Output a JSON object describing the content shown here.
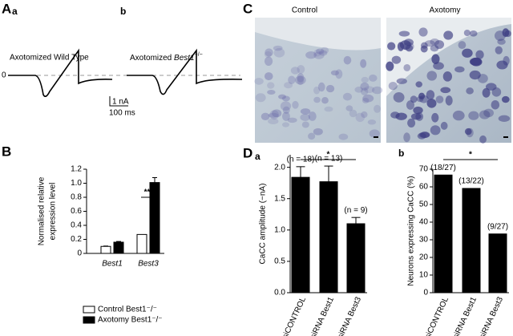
{
  "panel_labels": {
    "A": "A",
    "Aa": "a",
    "Ab": "b",
    "B": "B",
    "C": "C",
    "D": "D",
    "Da": "a",
    "Db": "b"
  },
  "traces": {
    "a_title": "Axotomized Wild Type",
    "b_title_prefix": "Axotomized ",
    "b_title_gene": "Best1",
    "b_title_sup": "−/−",
    "zero_label": "0",
    "scale_current": "1 nA",
    "scale_time": "100 ms"
  },
  "micrographs": {
    "left_title": "Control",
    "right_title": "Axotomy"
  },
  "chart_data": [
    {
      "type": "bar",
      "ylabel_lines": [
        "Normalised relative",
        "expression level"
      ],
      "categories": [
        "Best1",
        "Best3"
      ],
      "series": [
        {
          "name": "Control Best1⁻/⁻",
          "color": "#ffffff",
          "values": [
            0.1,
            0.27
          ],
          "errors": [
            0.005,
            0.0
          ]
        },
        {
          "name": "Axotomy Best1⁻/⁻",
          "color": "#000000",
          "values": [
            0.16,
            1.01
          ],
          "errors": [
            0.01,
            0.07
          ]
        }
      ],
      "ylim": [
        0,
        1.2
      ],
      "yticks": [
        0,
        {
          "value": 0.2,
          "label": "0.2"
        },
        {
          "value": 0.4,
          "label": "0.4"
        },
        {
          "value": 0.6,
          "label": "0.6"
        },
        {
          "value": 0.8,
          "label": "0.8"
        },
        {
          "value": 1.0,
          "label": "1.0"
        },
        {
          "value": 1.2,
          "label": "1.2"
        }
      ],
      "significance": "***",
      "legend": "bottom"
    },
    {
      "type": "bar",
      "ylabel": "CaCC amplitude (−nA)",
      "categories": [
        "siCONTROL",
        "siRNA Best1",
        "siRNA Best3"
      ],
      "values": [
        1.84,
        1.77,
        1.1
      ],
      "errors": [
        0.17,
        0.25,
        0.1
      ],
      "color": "#000000",
      "annotations": [
        "(n = 18)",
        "(n = 13)",
        "(n = 9)"
      ],
      "ylim": [
        0,
        2.2
      ],
      "yticks": [
        {
          "value": 0.0,
          "label": "0.0"
        },
        {
          "value": 0.5,
          "label": "0.5"
        },
        {
          "value": 1.0,
          "label": "1.0"
        },
        {
          "value": 1.5,
          "label": "1.5"
        },
        {
          "value": 2.0,
          "label": "2.0"
        }
      ],
      "significance": "*"
    },
    {
      "type": "bar",
      "ylabel": "Neurons expressing CaCC (%)",
      "categories": [
        "siCONTROL",
        "siRNA Best1",
        "siRNA Best3"
      ],
      "values": [
        66.7,
        59.1,
        33.3
      ],
      "color": "#000000",
      "annotations": [
        "(18/27)",
        "(13/22)",
        "(9/27)"
      ],
      "ylim": [
        0,
        70
      ],
      "yticks": [
        0,
        10,
        20,
        30,
        40,
        50,
        60,
        70
      ],
      "significance": "*"
    }
  ]
}
